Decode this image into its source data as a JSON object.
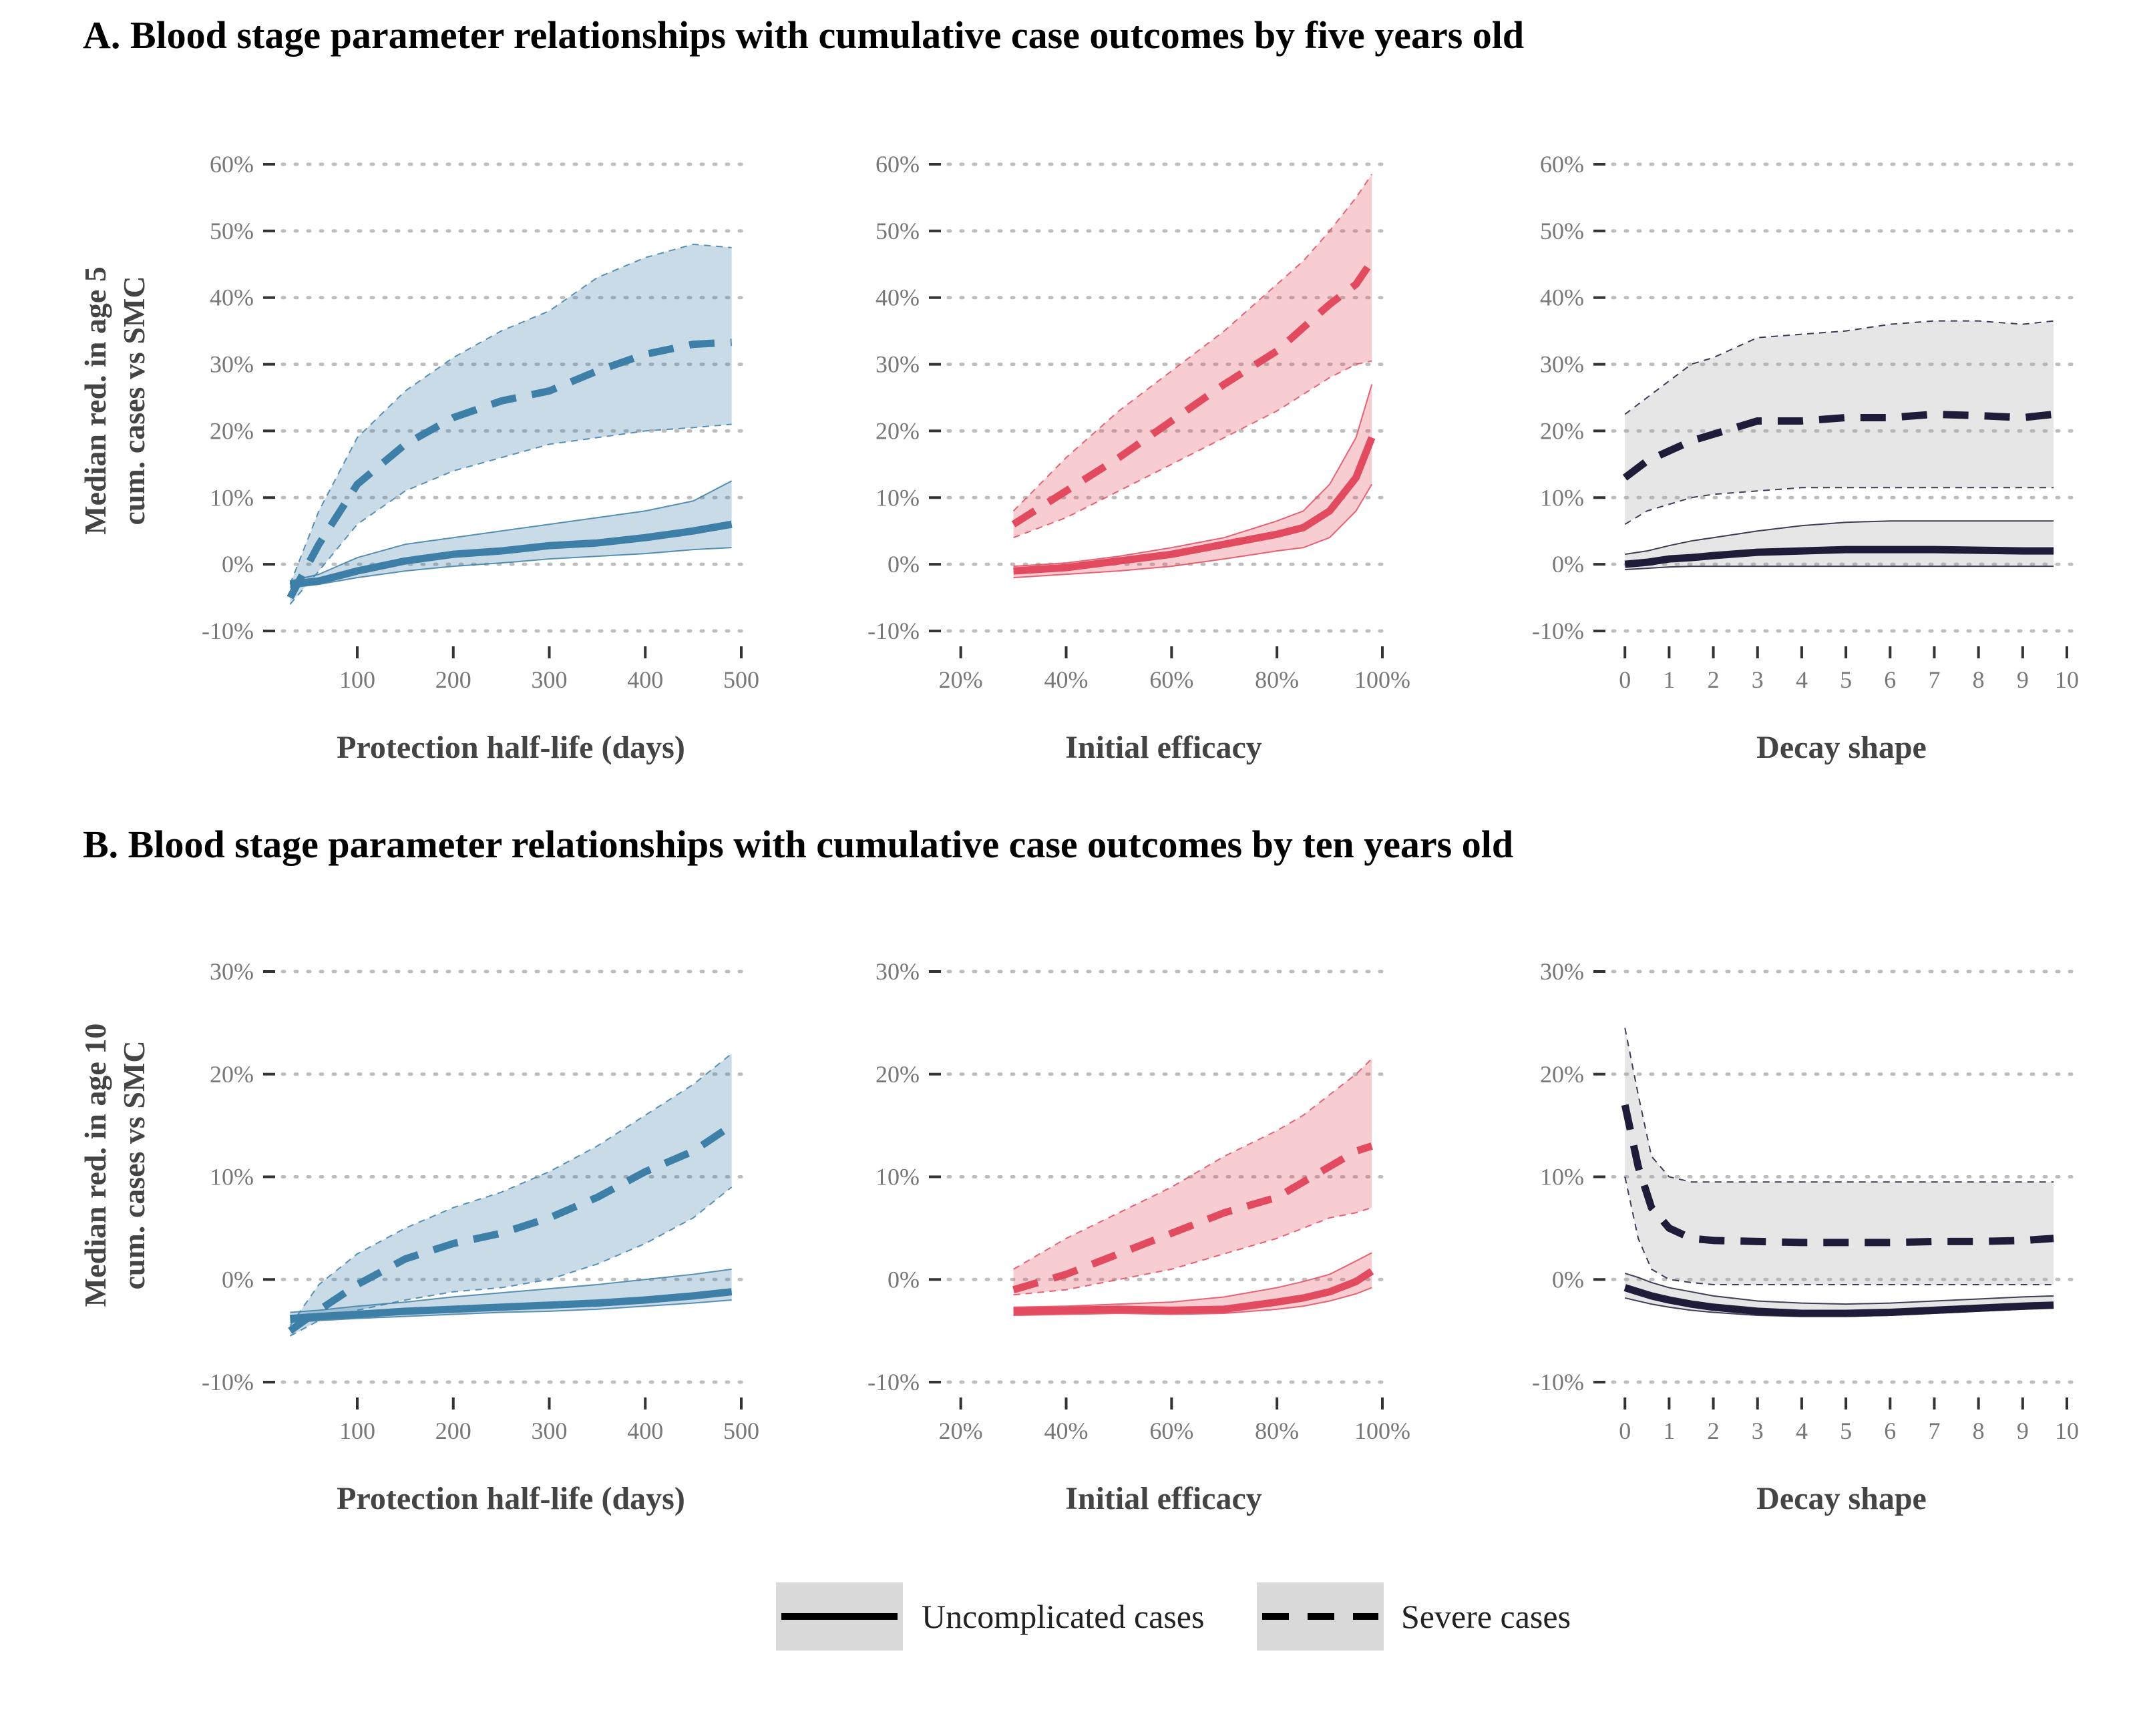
{
  "panels": [
    {
      "title": "A. Blood stage parameter relationships with cumulative case outcomes by five years old",
      "ylabel_lines": [
        "Median red. in age 5",
        "cum. cases vs SMC"
      ]
    },
    {
      "title": "B. Blood stage parameter relationships with cumulative case outcomes by ten years old",
      "ylabel_lines": [
        "Median red. in age 10",
        "cum. cases vs SMC"
      ]
    }
  ],
  "legend": [
    {
      "label": "Uncomplicated cases",
      "linetype": "solid"
    },
    {
      "label": "Severe cases",
      "linetype": "dashed"
    }
  ],
  "chart_data": [
    {
      "type": "line",
      "panel": "A",
      "xlabel": "Protection half-life (days)",
      "color": "#3e7fa8",
      "xlim": [
        20,
        500
      ],
      "ylim": [
        -10,
        60
      ],
      "xticks": [
        100,
        200,
        300,
        400,
        500
      ],
      "yticks": [
        -10,
        0,
        10,
        20,
        30,
        40,
        50,
        60
      ],
      "xtick_labels": [
        "100",
        "200",
        "300",
        "400",
        "500"
      ],
      "ytick_labels": [
        "-10%",
        "0%",
        "10%",
        "20%",
        "30%",
        "40%",
        "50%",
        "60%"
      ],
      "x": [
        30,
        60,
        100,
        150,
        200,
        250,
        300,
        350,
        400,
        450,
        490
      ],
      "series": [
        {
          "name": "Uncomplicated cases",
          "dash": false,
          "median": [
            -3,
            -2.5,
            -1,
            0.5,
            1.5,
            2,
            2.8,
            3.2,
            4,
            5,
            6
          ],
          "lower": [
            -3.5,
            -3,
            -2,
            -1,
            -0.3,
            0.2,
            0.8,
            1.2,
            1.6,
            2.2,
            2.5
          ],
          "upper": [
            -2.5,
            -1.5,
            1,
            3,
            4,
            5,
            6,
            7,
            8,
            9.5,
            12.5
          ]
        },
        {
          "name": "Severe cases",
          "dash": true,
          "median": [
            -5,
            3,
            12,
            18,
            22,
            24.5,
            26,
            29,
            31.5,
            33,
            33.3
          ],
          "lower": [
            -6,
            -1,
            6,
            11,
            14,
            16,
            18,
            19,
            20,
            20.5,
            21
          ],
          "upper": [
            -3,
            8,
            19,
            26,
            31,
            35,
            38,
            43,
            46,
            48,
            47.5
          ]
        }
      ]
    },
    {
      "type": "line",
      "panel": "A",
      "xlabel": "Initial efficacy",
      "color": "#e24b5f",
      "xlim": [
        17,
        100
      ],
      "ylim": [
        -10,
        60
      ],
      "xticks": [
        20,
        40,
        60,
        80,
        100
      ],
      "yticks": [
        -10,
        0,
        10,
        20,
        30,
        40,
        50,
        60
      ],
      "xtick_labels": [
        "20%",
        "40%",
        "60%",
        "80%",
        "100%"
      ],
      "ytick_labels": [
        "-10%",
        "0%",
        "10%",
        "20%",
        "30%",
        "40%",
        "50%",
        "60%"
      ],
      "x": [
        30,
        40,
        50,
        60,
        70,
        80,
        85,
        90,
        95,
        98
      ],
      "series": [
        {
          "name": "Uncomplicated cases",
          "dash": false,
          "median": [
            -1,
            -0.5,
            0.5,
            1.5,
            3,
            4.5,
            5.5,
            8,
            13,
            19
          ],
          "lower": [
            -2,
            -1.5,
            -1,
            -0.3,
            0.8,
            2,
            2.5,
            4,
            8,
            12
          ],
          "upper": [
            -0.3,
            0.2,
            1.2,
            2.5,
            4,
            6.5,
            8,
            12,
            19,
            27
          ]
        },
        {
          "name": "Severe cases",
          "dash": true,
          "median": [
            6,
            11,
            16,
            21.5,
            27,
            32,
            35.5,
            39,
            42,
            45.5
          ],
          "lower": [
            4,
            7,
            11,
            15,
            19,
            23,
            25.5,
            28,
            30,
            30.5
          ],
          "upper": [
            8,
            16,
            23,
            29,
            35,
            42,
            45.5,
            50,
            55,
            58.5
          ]
        }
      ]
    },
    {
      "type": "line",
      "panel": "A",
      "xlabel": "Decay shape",
      "color": "#1d1d3a",
      "xlim": [
        -0.2,
        10
      ],
      "ylim": [
        -10,
        60
      ],
      "xticks": [
        0,
        1,
        2,
        3,
        4,
        5,
        6,
        7,
        8,
        9,
        10
      ],
      "yticks": [
        -10,
        0,
        10,
        20,
        30,
        40,
        50,
        60
      ],
      "xtick_labels": [
        "0",
        "1",
        "2",
        "3",
        "4",
        "5",
        "6",
        "7",
        "8",
        "9",
        "10"
      ],
      "ytick_labels": [
        "-10%",
        "0%",
        "10%",
        "20%",
        "30%",
        "40%",
        "50%",
        "60%"
      ],
      "band_color": "#a6a6aa",
      "x": [
        0,
        0.5,
        1,
        1.5,
        2,
        3,
        4,
        5,
        6,
        7,
        8,
        9,
        9.7
      ],
      "series": [
        {
          "name": "Uncomplicated cases",
          "dash": false,
          "median": [
            0,
            0.3,
            0.8,
            1,
            1.3,
            1.8,
            2,
            2.2,
            2.2,
            2.2,
            2.1,
            2,
            2
          ],
          "lower": [
            -0.8,
            -0.6,
            -0.4,
            -0.3,
            -0.3,
            -0.3,
            -0.3,
            -0.3,
            -0.3,
            -0.3,
            -0.3,
            -0.3,
            -0.3
          ],
          "upper": [
            1.5,
            2,
            2.8,
            3.5,
            4,
            5,
            5.8,
            6.3,
            6.5,
            6.5,
            6.5,
            6.5,
            6.5
          ]
        },
        {
          "name": "Severe cases",
          "dash": true,
          "median": [
            13,
            15.5,
            17,
            18.5,
            19.5,
            21.5,
            21.5,
            22,
            22,
            22.5,
            22.3,
            22,
            22.5
          ],
          "lower": [
            6,
            8,
            9,
            10,
            10.5,
            11,
            11.5,
            11.5,
            11.5,
            11.5,
            11.5,
            11.5,
            11.5
          ],
          "upper": [
            22.5,
            25,
            27.5,
            30,
            31,
            34,
            34.5,
            35,
            36,
            36.5,
            36.5,
            36,
            36.5
          ]
        }
      ]
    },
    {
      "type": "line",
      "panel": "B",
      "xlabel": "Protection half-life (days)",
      "color": "#3e7fa8",
      "xlim": [
        20,
        500
      ],
      "ylim": [
        -10,
        30
      ],
      "xticks": [
        100,
        200,
        300,
        400,
        500
      ],
      "yticks": [
        -10,
        0,
        10,
        20,
        30
      ],
      "xtick_labels": [
        "100",
        "200",
        "300",
        "400",
        "500"
      ],
      "ytick_labels": [
        "-10%",
        "0%",
        "10%",
        "20%",
        "30%"
      ],
      "x": [
        30,
        60,
        100,
        150,
        200,
        250,
        300,
        350,
        400,
        450,
        490
      ],
      "series": [
        {
          "name": "Uncomplicated cases",
          "dash": false,
          "median": [
            -3.8,
            -3.6,
            -3.4,
            -3.1,
            -2.9,
            -2.7,
            -2.5,
            -2.3,
            -2,
            -1.6,
            -1.2
          ],
          "lower": [
            -4.2,
            -4,
            -3.8,
            -3.6,
            -3.4,
            -3.2,
            -3.1,
            -2.9,
            -2.6,
            -2.3,
            -2
          ],
          "upper": [
            -3.2,
            -3,
            -2.6,
            -2.2,
            -1.7,
            -1.3,
            -0.9,
            -0.5,
            0,
            0.5,
            1
          ]
        },
        {
          "name": "Severe cases",
          "dash": true,
          "median": [
            -5,
            -3,
            -0.5,
            2,
            3.5,
            4.5,
            6,
            8,
            10.5,
            12.5,
            15
          ],
          "lower": [
            -5.5,
            -4,
            -3,
            -2,
            -1.2,
            -0.8,
            0,
            1.5,
            3.5,
            6,
            9
          ],
          "upper": [
            -4.5,
            -0.5,
            2.5,
            5,
            7,
            8.5,
            10.5,
            13,
            16,
            19,
            22
          ]
        }
      ]
    },
    {
      "type": "line",
      "panel": "B",
      "xlabel": "Initial efficacy",
      "color": "#e24b5f",
      "xlim": [
        17,
        100
      ],
      "ylim": [
        -10,
        30
      ],
      "xticks": [
        20,
        40,
        60,
        80,
        100
      ],
      "yticks": [
        -10,
        0,
        10,
        20,
        30
      ],
      "xtick_labels": [
        "20%",
        "40%",
        "60%",
        "80%",
        "100%"
      ],
      "ytick_labels": [
        "-10%",
        "0%",
        "10%",
        "20%",
        "30%"
      ],
      "x": [
        30,
        40,
        50,
        60,
        70,
        80,
        85,
        90,
        95,
        98
      ],
      "series": [
        {
          "name": "Uncomplicated cases",
          "dash": false,
          "median": [
            -3.1,
            -3,
            -2.9,
            -3,
            -2.9,
            -2.2,
            -1.8,
            -1.2,
            -0.2,
            0.8
          ],
          "lower": [
            -3.5,
            -3.4,
            -3.3,
            -3.4,
            -3.3,
            -2.9,
            -2.6,
            -2.1,
            -1.4,
            -0.8
          ],
          "upper": [
            -2.7,
            -2.6,
            -2.4,
            -2.2,
            -1.7,
            -0.8,
            -0.2,
            0.5,
            1.8,
            2.6
          ]
        },
        {
          "name": "Severe cases",
          "dash": true,
          "median": [
            -1,
            0.5,
            2.5,
            4.5,
            6.5,
            8,
            9.5,
            11,
            12.5,
            13
          ],
          "lower": [
            -1.5,
            -1,
            0,
            1,
            2.5,
            4,
            5,
            6,
            6.5,
            7
          ],
          "upper": [
            1,
            4,
            6.5,
            9,
            12,
            14.5,
            16,
            18,
            20,
            21.5
          ]
        }
      ]
    },
    {
      "type": "line",
      "panel": "B",
      "xlabel": "Decay shape",
      "color": "#1d1d3a",
      "xlim": [
        -0.2,
        10
      ],
      "ylim": [
        -10,
        30
      ],
      "xticks": [
        0,
        1,
        2,
        3,
        4,
        5,
        6,
        7,
        8,
        9,
        10
      ],
      "yticks": [
        -10,
        0,
        10,
        20,
        30
      ],
      "xtick_labels": [
        "0",
        "1",
        "2",
        "3",
        "4",
        "5",
        "6",
        "7",
        "8",
        "9",
        "10"
      ],
      "ytick_labels": [
        "-10%",
        "0%",
        "10%",
        "20%",
        "30%"
      ],
      "band_color": "#a6a6aa",
      "x": [
        0,
        0.3,
        0.6,
        1,
        1.5,
        2,
        3,
        4,
        5,
        6,
        7,
        8,
        9,
        9.7
      ],
      "series": [
        {
          "name": "Uncomplicated cases",
          "dash": false,
          "median": [
            -0.8,
            -1.2,
            -1.6,
            -2,
            -2.4,
            -2.7,
            -3.1,
            -3.3,
            -3.3,
            -3.2,
            -3,
            -2.8,
            -2.6,
            -2.5
          ],
          "lower": [
            -1.8,
            -2.1,
            -2.4,
            -2.7,
            -3,
            -3.2,
            -3.5,
            -3.6,
            -3.6,
            -3.5,
            -3.3,
            -3.1,
            -2.9,
            -2.8
          ],
          "upper": [
            0.6,
            0.2,
            -0.3,
            -0.8,
            -1.2,
            -1.6,
            -2.1,
            -2.3,
            -2.4,
            -2.3,
            -2.1,
            -1.9,
            -1.7,
            -1.6
          ]
        },
        {
          "name": "Severe cases",
          "dash": true,
          "median": [
            17,
            11,
            7,
            5,
            4,
            3.8,
            3.7,
            3.6,
            3.6,
            3.6,
            3.7,
            3.7,
            3.8,
            4
          ],
          "lower": [
            10,
            4,
            1,
            0,
            -0.3,
            -0.5,
            -0.5,
            -0.5,
            -0.5,
            -0.5,
            -0.5,
            -0.5,
            -0.5,
            -0.5
          ],
          "upper": [
            24.5,
            18,
            12,
            10,
            9.5,
            9.5,
            9.5,
            9.5,
            9.5,
            9.5,
            9.5,
            9.5,
            9.5,
            9.5
          ]
        }
      ]
    }
  ]
}
